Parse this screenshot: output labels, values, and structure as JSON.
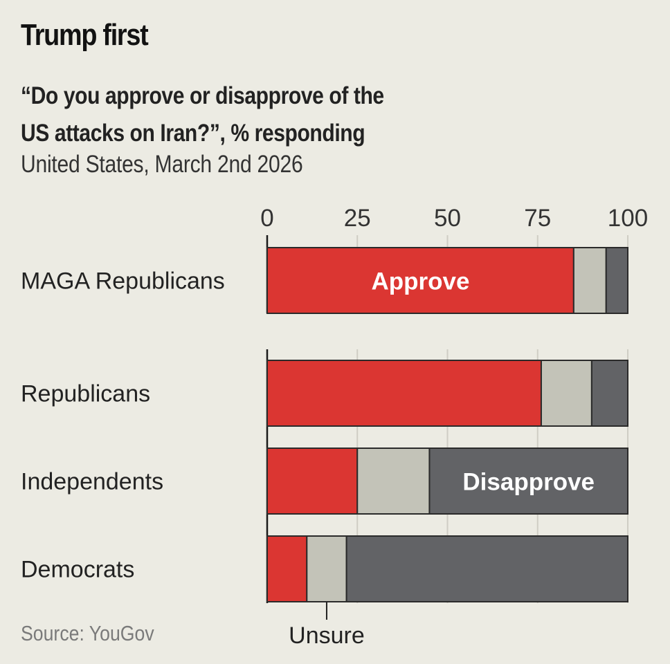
{
  "header": {
    "title": "Trump first",
    "subtitle_line1": "“Do you approve or disapprove of the",
    "subtitle_line2": "US attacks on Iran?”, % responding",
    "subline": "United States, March 2nd 2026"
  },
  "footer": {
    "source": "Source: YouGov"
  },
  "colors": {
    "background": "#ecebe3",
    "approve": "#db3632",
    "unsure": "#c3c3b8",
    "disapprove": "#626366",
    "gridline": "#cfcdc4",
    "axis": "#1a1a1a"
  },
  "chart_data": {
    "type": "bar",
    "orientation": "horizontal",
    "stacked": true,
    "title": "Trump first",
    "subtitle": "“Do you approve or disapprove of the US attacks on Iran?”, % responding",
    "note": "United States, March 2nd 2026",
    "source": "Source: YouGov",
    "xlabel": "",
    "ylabel": "",
    "xlim": [
      0,
      100
    ],
    "xticks": [
      0,
      25,
      50,
      75,
      100
    ],
    "xtick_labels": [
      "0",
      "25",
      "50",
      "75",
      "100"
    ],
    "xaxis_position": "top",
    "grid": true,
    "categories": [
      "MAGA Republicans",
      "Republicans",
      "Independents",
      "Democrats"
    ],
    "groups": [
      [
        "MAGA Republicans"
      ],
      [
        "Republicans",
        "Independents",
        "Democrats"
      ]
    ],
    "series": [
      {
        "name": "Approve",
        "values": [
          85,
          76,
          25,
          11
        ]
      },
      {
        "name": "Unsure",
        "values": [
          9,
          14,
          20,
          11
        ]
      },
      {
        "name": "Disapprove",
        "values": [
          6,
          10,
          55,
          78
        ]
      }
    ],
    "annotations": [
      {
        "text": "Approve",
        "series": "Approve",
        "category": "MAGA Republicans"
      },
      {
        "text": "Disapprove",
        "series": "Disapprove",
        "category": "Independents"
      },
      {
        "text": "Unsure",
        "series": "Unsure",
        "category": "Democrats",
        "placement": "below"
      }
    ]
  }
}
